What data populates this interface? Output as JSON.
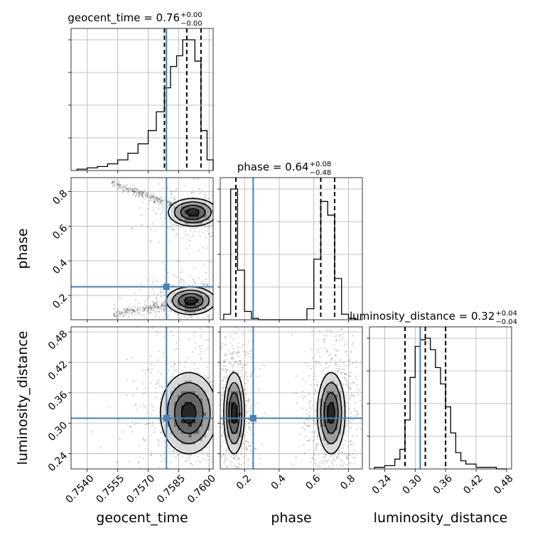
{
  "chart_data": {
    "type": "corner",
    "parameters": [
      "geocent_time",
      "phase",
      "luminosity_distance"
    ],
    "truths": {
      "geocent_time": 0.7579,
      "phase": 0.25,
      "luminosity_distance": 0.31
    },
    "truth_color": "#4682b4",
    "titles": [
      {
        "param": "geocent_time",
        "prefix": "geocent_time = 0.76",
        "plus": "+0.00",
        "minus": "−0.00"
      },
      {
        "param": "phase",
        "prefix": "phase = 0.64",
        "plus": "+0.08",
        "minus": "−0.48"
      },
      {
        "param": "luminosity_distance",
        "prefix": "luminosity_distance = 0.32",
        "plus": "+0.04",
        "minus": "−0.04"
      }
    ],
    "axes": {
      "geocent_time": {
        "range": [
          0.7532,
          0.7602
        ],
        "ticks": [
          0.754,
          0.7555,
          0.757,
          0.7585,
          0.76
        ],
        "tick_labels": [
          "0.7540",
          "0.7555",
          "0.7570",
          "0.7585",
          "0.7600"
        ],
        "label": "geocent_time"
      },
      "phase": {
        "range": [
          0.06,
          0.88
        ],
        "ticks": [
          0.2,
          0.4,
          0.6,
          0.8
        ],
        "tick_labels": [
          "0.2",
          "0.4",
          "0.6",
          "0.8"
        ],
        "label": "phase"
      },
      "luminosity_distance": {
        "range": [
          0.21,
          0.49
        ],
        "ticks": [
          0.24,
          0.3,
          0.36,
          0.42,
          0.48
        ],
        "tick_labels": [
          "0.24",
          "0.30",
          "0.36",
          "0.42",
          "0.48"
        ],
        "label": "luminosity_distance"
      }
    },
    "quantiles": {
      "geocent_time": [
        0.7578,
        0.7589,
        0.7596
      ],
      "phase": [
        0.15,
        0.64,
        0.72
      ],
      "luminosity_distance": [
        0.28,
        0.32,
        0.36
      ]
    },
    "histograms": {
      "geocent_time": {
        "edges": [
          0.7535,
          0.754,
          0.7545,
          0.755,
          0.7555,
          0.756,
          0.7565,
          0.757,
          0.7574,
          0.7578,
          0.7581,
          0.7584,
          0.7587,
          0.759,
          0.7593,
          0.7596,
          0.7599,
          0.7602
        ],
        "counts": [
          1,
          2,
          3,
          5,
          8,
          13,
          20,
          30,
          44,
          62,
          78,
          86,
          98,
          98,
          82,
          30,
          8
        ]
      },
      "phase": {
        "edges": [
          0.08,
          0.12,
          0.16,
          0.2,
          0.24,
          0.28,
          0.32,
          0.36,
          0.4,
          0.44,
          0.48,
          0.52,
          0.56,
          0.6,
          0.64,
          0.68,
          0.72,
          0.76,
          0.8,
          0.84
        ],
        "counts": [
          4,
          95,
          36,
          6,
          1,
          0,
          0,
          0,
          0,
          0,
          0,
          0,
          8,
          44,
          86,
          76,
          30,
          4,
          1
        ]
      },
      "luminosity_distance": {
        "edges": [
          0.22,
          0.24,
          0.26,
          0.27,
          0.28,
          0.29,
          0.3,
          0.31,
          0.32,
          0.33,
          0.34,
          0.35,
          0.36,
          0.37,
          0.38,
          0.39,
          0.4,
          0.42,
          0.44,
          0.46,
          0.48
        ],
        "counts": [
          1,
          2,
          6,
          12,
          30,
          56,
          75,
          79,
          80,
          73,
          62,
          52,
          38,
          22,
          10,
          5,
          3,
          1,
          1,
          0
        ]
      }
    },
    "contours_2d": [
      {
        "x": "geocent_time",
        "y": "phase",
        "modes": [
          {
            "center": [
              0.7592,
              0.68
            ],
            "sd": [
              0.0006,
              0.04
            ]
          },
          {
            "center": [
              0.7591,
              0.17
            ],
            "sd": [
              0.0006,
              0.04
            ]
          }
        ]
      },
      {
        "x": "geocent_time",
        "y": "luminosity_distance",
        "modes": [
          {
            "center": [
              0.759,
              0.32
            ],
            "sd": [
              0.0007,
              0.04
            ]
          }
        ]
      },
      {
        "x": "phase",
        "y": "luminosity_distance",
        "modes": [
          {
            "center": [
              0.14,
              0.32
            ],
            "sd": [
              0.03,
              0.04
            ]
          },
          {
            "center": [
              0.7,
              0.32
            ],
            "sd": [
              0.04,
              0.04
            ]
          }
        ]
      }
    ]
  }
}
